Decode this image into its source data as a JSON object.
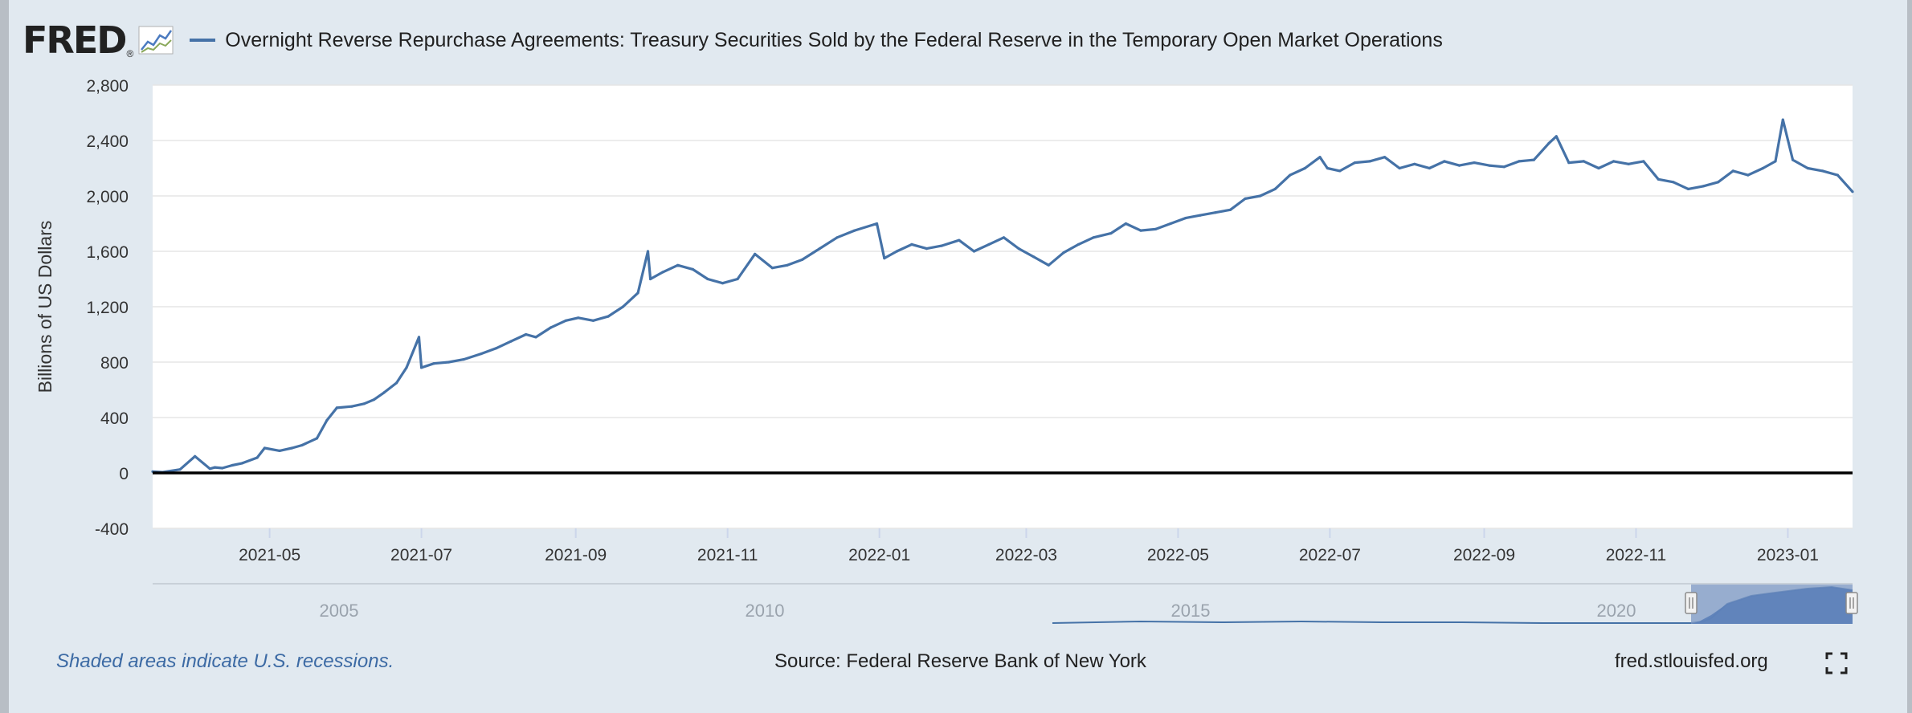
{
  "header": {
    "logo": "FRED",
    "logo_mark": "®",
    "title": "Overnight Reverse Repurchase Agreements: Treasury Securities Sold by the Federal Reserve in the Temporary Open Market Operations"
  },
  "footer": {
    "recession_note": "Shaded areas indicate U.S. recessions.",
    "source": "Source: Federal Reserve Bank of New York",
    "site": "fred.stlouisfed.org"
  },
  "icons": {
    "fullscreen": "fullscreen-icon",
    "logo_graph": "line-graph-icon"
  },
  "colors": {
    "series": "#4572a7",
    "navigator_fill": "#7d98c4",
    "background": "#e1e9f0",
    "zero_line": "#000000"
  },
  "chart_data": {
    "type": "line",
    "title": "Overnight Reverse Repurchase Agreements: Treasury Securities Sold by the Federal Reserve in the Temporary Open Market Operations",
    "xlabel": "",
    "ylabel": "Billions of US Dollars",
    "xlim": [
      "2021-03-15",
      "2023-01-27"
    ],
    "ylim": [
      -400,
      2800
    ],
    "yticks": [
      -400,
      0,
      400,
      800,
      1200,
      1600,
      2000,
      2400,
      2800
    ],
    "ytick_labels": [
      "-400",
      "0",
      "400",
      "800",
      "1,200",
      "1,600",
      "2,000",
      "2,400",
      "2,800"
    ],
    "xtick_labels": [
      "2021-05",
      "2021-07",
      "2021-09",
      "2021-11",
      "2022-01",
      "2022-03",
      "2022-05",
      "2022-07",
      "2022-09",
      "2022-11",
      "2023-01"
    ],
    "xtick_dates": [
      "2021-05-01",
      "2021-07-01",
      "2021-09-01",
      "2021-11-01",
      "2022-01-01",
      "2022-03-01",
      "2022-05-01",
      "2022-07-01",
      "2022-09-01",
      "2022-11-01",
      "2023-01-01"
    ],
    "grid": true,
    "legend": "top-left",
    "series": [
      {
        "name": "Overnight Reverse Repurchase Agreements: Treasury Securities Sold by the Federal Reserve in the Temporary Open Market Operations",
        "x": [
          "2021-03-15",
          "2021-03-19",
          "2021-03-26",
          "2021-04-01",
          "2021-04-07",
          "2021-04-09",
          "2021-04-12",
          "2021-04-16",
          "2021-04-20",
          "2021-04-26",
          "2021-04-29",
          "2021-05-05",
          "2021-05-10",
          "2021-05-14",
          "2021-05-20",
          "2021-05-24",
          "2021-05-28",
          "2021-06-03",
          "2021-06-08",
          "2021-06-12",
          "2021-06-16",
          "2021-06-21",
          "2021-06-25",
          "2021-06-30",
          "2021-07-01",
          "2021-07-06",
          "2021-07-12",
          "2021-07-18",
          "2021-07-25",
          "2021-07-31",
          "2021-08-06",
          "2021-08-12",
          "2021-08-16",
          "2021-08-22",
          "2021-08-28",
          "2021-09-02",
          "2021-09-08",
          "2021-09-14",
          "2021-09-20",
          "2021-09-26",
          "2021-09-30",
          "2021-10-01",
          "2021-10-06",
          "2021-10-12",
          "2021-10-18",
          "2021-10-24",
          "2021-10-30",
          "2021-11-05",
          "2021-11-12",
          "2021-11-19",
          "2021-11-25",
          "2021-12-01",
          "2021-12-08",
          "2021-12-15",
          "2021-12-22",
          "2021-12-31",
          "2022-01-03",
          "2022-01-08",
          "2022-01-14",
          "2022-01-20",
          "2022-01-26",
          "2022-02-02",
          "2022-02-08",
          "2022-02-14",
          "2022-02-20",
          "2022-02-26",
          "2022-03-04",
          "2022-03-10",
          "2022-03-16",
          "2022-03-22",
          "2022-03-28",
          "2022-04-04",
          "2022-04-10",
          "2022-04-16",
          "2022-04-22",
          "2022-04-28",
          "2022-05-04",
          "2022-05-10",
          "2022-05-16",
          "2022-05-22",
          "2022-05-28",
          "2022-06-03",
          "2022-06-09",
          "2022-06-15",
          "2022-06-21",
          "2022-06-27",
          "2022-06-30",
          "2022-07-05",
          "2022-07-11",
          "2022-07-17",
          "2022-07-23",
          "2022-07-29",
          "2022-08-04",
          "2022-08-10",
          "2022-08-16",
          "2022-08-22",
          "2022-08-28",
          "2022-09-03",
          "2022-09-09",
          "2022-09-15",
          "2022-09-21",
          "2022-09-27",
          "2022-09-30",
          "2022-10-05",
          "2022-10-11",
          "2022-10-17",
          "2022-10-23",
          "2022-10-29",
          "2022-11-04",
          "2022-11-10",
          "2022-11-16",
          "2022-11-22",
          "2022-11-28",
          "2022-12-04",
          "2022-12-10",
          "2022-12-16",
          "2022-12-22",
          "2022-12-27",
          "2022-12-30",
          "2023-01-03",
          "2023-01-09",
          "2023-01-15",
          "2023-01-21",
          "2023-01-27"
        ],
        "y": [
          10,
          5,
          25,
          120,
          30,
          40,
          35,
          55,
          70,
          110,
          180,
          160,
          180,
          200,
          250,
          380,
          470,
          480,
          500,
          530,
          580,
          650,
          760,
          980,
          760,
          790,
          800,
          820,
          860,
          900,
          950,
          1000,
          980,
          1050,
          1100,
          1120,
          1100,
          1130,
          1200,
          1300,
          1600,
          1400,
          1450,
          1500,
          1470,
          1400,
          1370,
          1400,
          1580,
          1480,
          1500,
          1540,
          1620,
          1700,
          1750,
          1800,
          1550,
          1600,
          1650,
          1620,
          1640,
          1680,
          1600,
          1650,
          1700,
          1620,
          1560,
          1500,
          1590,
          1650,
          1700,
          1730,
          1800,
          1750,
          1760,
          1800,
          1840,
          1860,
          1880,
          1900,
          1980,
          2000,
          2050,
          2150,
          2200,
          2280,
          2200,
          2180,
          2240,
          2250,
          2280,
          2200,
          2230,
          2200,
          2250,
          2220,
          2240,
          2220,
          2210,
          2250,
          2260,
          2380,
          2430,
          2240,
          2250,
          2200,
          2250,
          2230,
          2250,
          2120,
          2100,
          2050,
          2070,
          2100,
          2180,
          2150,
          2200,
          2250,
          2550,
          2260,
          2200,
          2180,
          2150,
          2030
        ]
      }
    ]
  }
}
